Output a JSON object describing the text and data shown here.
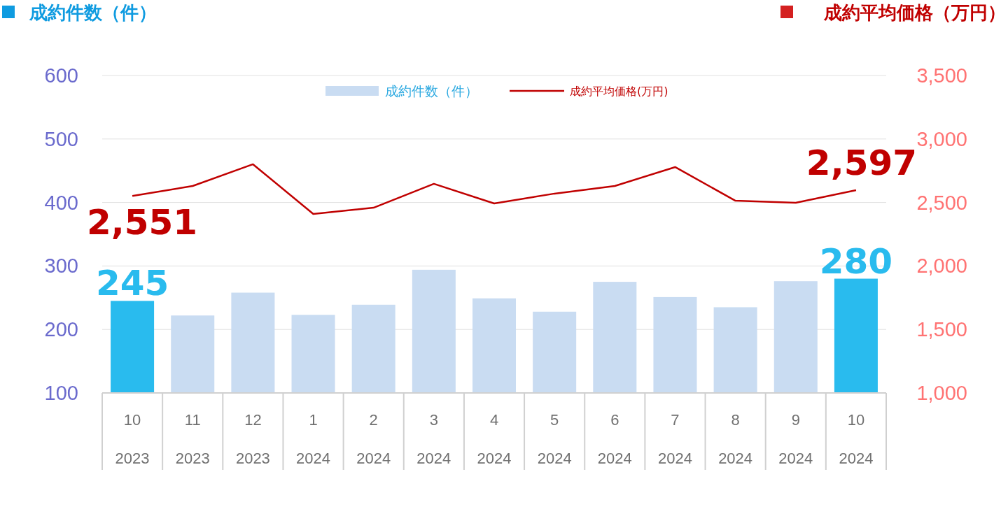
{
  "chart_data": {
    "type": "bar",
    "ylabel": "成約件数（件）",
    "y2label": "成約平均価格（万円）",
    "categories": [
      "10\n2023",
      "11\n2023",
      "12\n2023",
      "1\n2024",
      "2\n2024",
      "3\n2024",
      "4\n2024",
      "5\n2024",
      "6\n2024",
      "7\n2024",
      "8\n2024",
      "9\n2024",
      "10\n2024"
    ],
    "series": [
      {
        "name": "成約件数（件）",
        "color": "#c9dcf2",
        "colors": [
          "#29bbee",
          "#c9dcf2",
          "#c9dcf2",
          "#c9dcf2",
          "#c9dcf2",
          "#c9dcf2",
          "#c9dcf2",
          "#c9dcf2",
          "#c9dcf2",
          "#c9dcf2",
          "#c9dcf2",
          "#c9dcf2",
          "#29bbee"
        ],
        "values": [
          245,
          222,
          258,
          223,
          239,
          294,
          249,
          228,
          275,
          251,
          235,
          276,
          280
        ],
        "value_labels": [
          "245",
          null,
          null,
          null,
          null,
          null,
          null,
          null,
          null,
          null,
          null,
          null,
          "280"
        ]
      },
      {
        "type": "line",
        "axis": "y2",
        "name": "成約平均価格(万円)",
        "color": "#c00000",
        "values": [
          2551,
          2630,
          2801,
          2410,
          2459,
          2647,
          2492,
          2570,
          2630,
          2779,
          2514,
          2498,
          2597
        ],
        "value_labels": [
          "2,551",
          null,
          null,
          null,
          null,
          null,
          null,
          null,
          null,
          null,
          null,
          null,
          "2,597"
        ]
      }
    ],
    "ylim": [
      100,
      600
    ],
    "yticks": [
      100,
      200,
      300,
      400,
      500,
      600
    ],
    "y2lim": [
      1000,
      3500
    ],
    "y2ticks": [
      {
        "value": 1000,
        "label": "1,000"
      },
      {
        "value": 1500,
        "label": "1,500"
      },
      {
        "value": 2000,
        "label": "2,000"
      },
      {
        "value": 2500,
        "label": "2,500"
      },
      {
        "value": 3000,
        "label": "3,000"
      },
      {
        "value": 3500,
        "label": "3,500"
      }
    ],
    "grid": "y",
    "legend": "top",
    "marker": "none",
    "line_style": "solid"
  }
}
